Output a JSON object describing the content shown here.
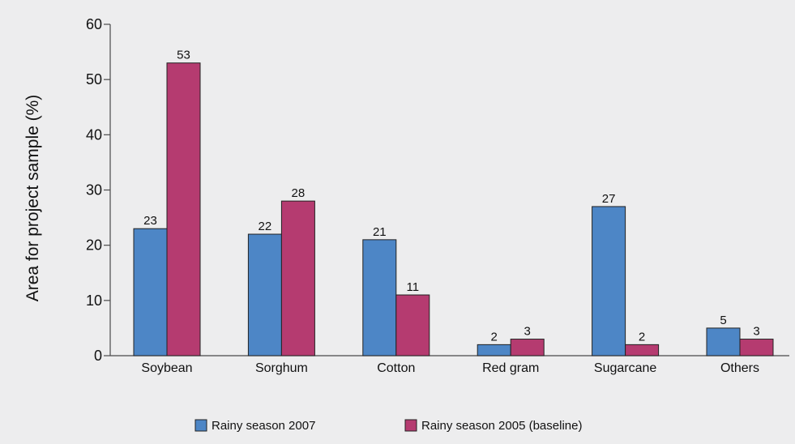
{
  "chart_data": {
    "type": "bar",
    "title": "",
    "xlabel": "",
    "ylabel": "Area for project sample (%)",
    "ylim": [
      0,
      60
    ],
    "yticks": [
      0,
      10,
      20,
      30,
      40,
      50,
      60
    ],
    "categories": [
      "Soybean",
      "Sorghum",
      "Cotton",
      "Red gram",
      "Sugarcane",
      "Others"
    ],
    "series": [
      {
        "name": "Rainy season 2007",
        "color": "#4d86c6",
        "values": [
          23,
          22,
          21,
          2,
          27,
          5
        ]
      },
      {
        "name": "Rainy season 2005 (baseline)",
        "color": "#b53b70",
        "values": [
          53,
          28,
          11,
          3,
          2,
          3
        ]
      }
    ],
    "data_labels": true,
    "grid": false,
    "legend_position": "bottom"
  }
}
